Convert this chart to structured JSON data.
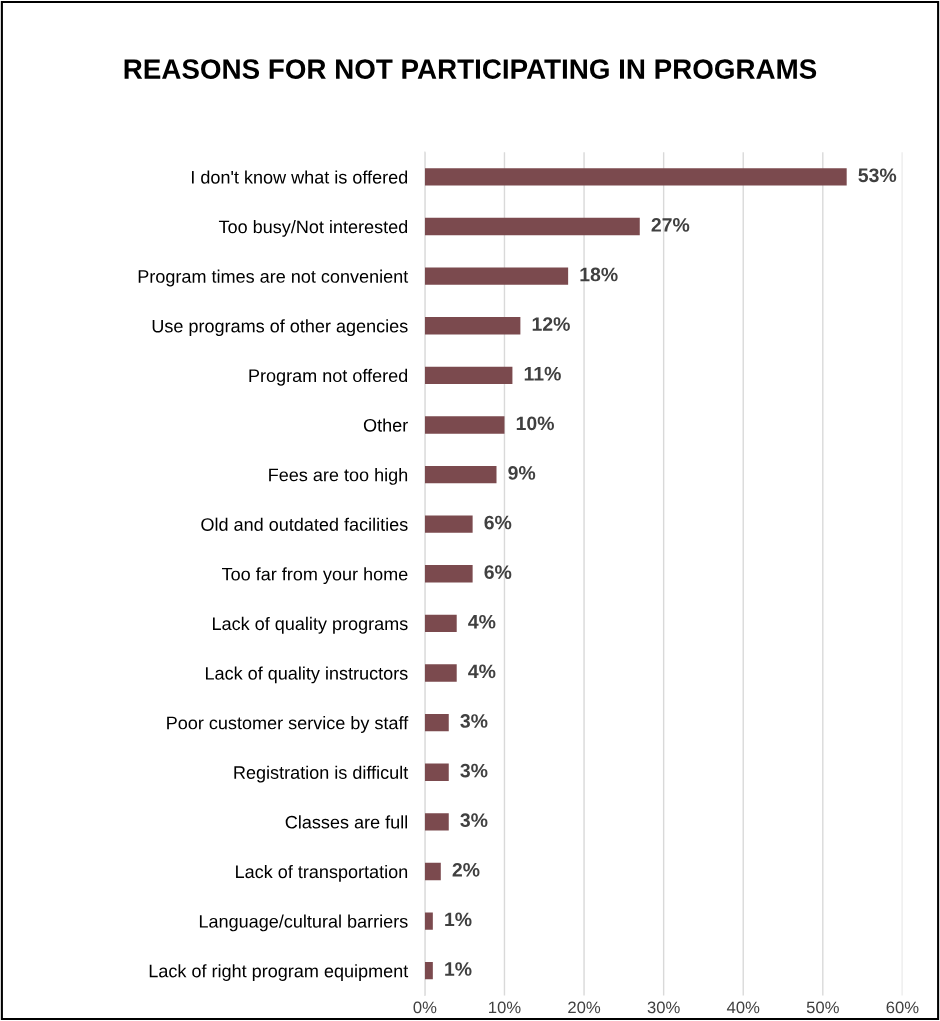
{
  "chart_data": {
    "type": "bar",
    "orientation": "horizontal",
    "title": "REASONS FOR NOT PARTICIPATING IN PROGRAMS",
    "categories": [
      "I don't know what is offered",
      "Too busy/Not interested",
      "Program times are not convenient",
      "Use programs of other agencies",
      "Program not offered",
      "Other",
      "Fees are too high",
      "Old and outdated facilities",
      "Too far from your home",
      "Lack of quality programs",
      "Lack of quality instructors",
      "Poor customer service by staff",
      "Registration is difficult",
      "Classes are full",
      "Lack of transportation",
      "Language/cultural barriers",
      "Lack of right program equipment"
    ],
    "values": [
      53,
      27,
      18,
      12,
      11,
      10,
      9,
      6,
      6,
      4,
      4,
      3,
      3,
      3,
      2,
      1,
      1
    ],
    "value_labels": [
      "53%",
      "27%",
      "18%",
      "12%",
      "11%",
      "10%",
      "9%",
      "6%",
      "6%",
      "4%",
      "4%",
      "3%",
      "3%",
      "3%",
      "2%",
      "1%",
      "1%"
    ],
    "color": "#7b4a4e",
    "xlim": [
      0,
      60
    ],
    "xticks": [
      {
        "value": 0,
        "label": "0%"
      },
      {
        "value": 10,
        "label": "10%"
      },
      {
        "value": 20,
        "label": "20%"
      },
      {
        "value": 30,
        "label": "30%"
      },
      {
        "value": 40,
        "label": "40%"
      },
      {
        "value": 50,
        "label": "50%"
      },
      {
        "value": 60,
        "label": "60%"
      }
    ],
    "grid": "x",
    "legend": false
  }
}
